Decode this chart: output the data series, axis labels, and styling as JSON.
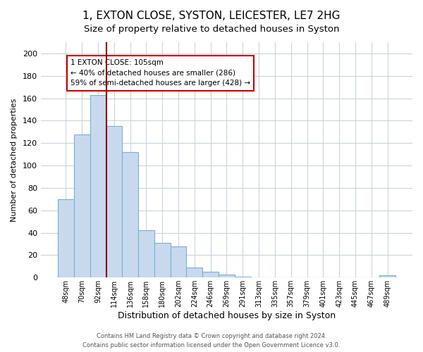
{
  "title": "1, EXTON CLOSE, SYSTON, LEICESTER, LE7 2HG",
  "subtitle": "Size of property relative to detached houses in Syston",
  "xlabel": "Distribution of detached houses by size in Syston",
  "ylabel": "Number of detached properties",
  "bar_labels": [
    "48sqm",
    "70sqm",
    "92sqm",
    "114sqm",
    "136sqm",
    "158sqm",
    "180sqm",
    "202sqm",
    "224sqm",
    "246sqm",
    "269sqm",
    "291sqm",
    "313sqm",
    "335sqm",
    "357sqm",
    "379sqm",
    "401sqm",
    "423sqm",
    "445sqm",
    "467sqm",
    "489sqm"
  ],
  "bar_values": [
    70,
    128,
    163,
    135,
    112,
    42,
    31,
    28,
    9,
    5,
    3,
    1,
    0,
    0,
    0,
    0,
    0,
    0,
    0,
    0,
    2
  ],
  "bar_color": "#c8d9ee",
  "bar_edge_color": "#7aafd4",
  "vline_color": "#8b0000",
  "annotation_text": "1 EXTON CLOSE: 105sqm\n← 40% of detached houses are smaller (286)\n59% of semi-detached houses are larger (428) →",
  "annotation_box_color": "#ffffff",
  "annotation_box_edge": "#cc0000",
  "ylim": [
    0,
    210
  ],
  "yticks": [
    0,
    20,
    40,
    60,
    80,
    100,
    120,
    140,
    160,
    180,
    200
  ],
  "footer1": "Contains HM Land Registry data © Crown copyright and database right 2024.",
  "footer2": "Contains public sector information licensed under the Open Government Licence v3.0.",
  "bg_color": "#ffffff",
  "grid_color": "#c8d4e0",
  "title_fontsize": 11,
  "subtitle_fontsize": 9.5
}
